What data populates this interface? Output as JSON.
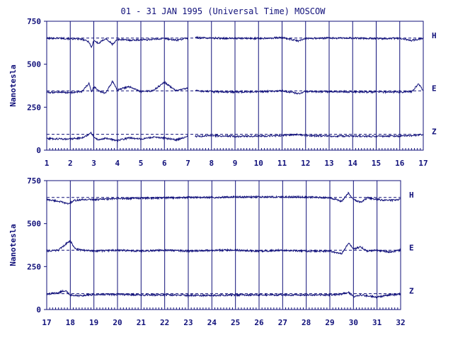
{
  "chart_data": {
    "type": "line",
    "title": "01 - 31 JAN 1995 (Universal Time) MOSCOW",
    "line_color": "#10107a",
    "grid": true,
    "panels": [
      {
        "ylabel": "Nanotesla",
        "ylim": [
          0,
          750
        ],
        "yticks": [
          0,
          250,
          500,
          750
        ],
        "xlim": [
          1,
          17
        ],
        "xticks": [
          1,
          2,
          3,
          4,
          5,
          6,
          7,
          8,
          9,
          10,
          11,
          12,
          13,
          14,
          15,
          16,
          17
        ],
        "gap": [
          7,
          7.3
        ],
        "series": [
          {
            "name": "H",
            "baseline": 652,
            "x": [
              1,
              1.5,
              2,
              2.5,
              2.8,
              2.9,
              3.0,
              3.2,
              3.5,
              3.8,
              4.0,
              4.5,
              5,
              5.5,
              6,
              6.5,
              7,
              7.3,
              8,
              9,
              10,
              11,
              11.7,
              12,
              13,
              14,
              15,
              16,
              16.5,
              17
            ],
            "y": [
              650,
              652,
              648,
              645,
              630,
              595,
              640,
              620,
              650,
              615,
              645,
              640,
              642,
              645,
              650,
              640,
              652,
              655,
              652,
              650,
              650,
              655,
              635,
              650,
              652,
              652,
              650,
              650,
              638,
              652
            ]
          },
          {
            "name": "E",
            "baseline": 345,
            "x": [
              1,
              1.5,
              2,
              2.5,
              2.8,
              2.9,
              3.0,
              3.2,
              3.5,
              3.8,
              4.0,
              4.5,
              5,
              5.5,
              6,
              6.5,
              7,
              7.3,
              8,
              9,
              10,
              11,
              11.7,
              12,
              13,
              14,
              15,
              16,
              16.5,
              16.8,
              17
            ],
            "y": [
              335,
              338,
              335,
              340,
              390,
              335,
              370,
              345,
              330,
              400,
              350,
              370,
              340,
              345,
              395,
              345,
              360,
              345,
              340,
              338,
              340,
              345,
              330,
              340,
              340,
              340,
              338,
              338,
              340,
              385,
              345
            ]
          },
          {
            "name": "Z",
            "baseline": 92,
            "x": [
              1,
              1.5,
              2,
              2.5,
              2.9,
              3.0,
              3.2,
              3.5,
              4.0,
              4.5,
              5,
              5.5,
              6,
              6.5,
              7,
              7.3,
              8,
              9,
              10,
              11,
              11.7,
              12,
              13,
              14,
              15,
              16,
              16.5,
              17
            ],
            "y": [
              68,
              66,
              65,
              72,
              100,
              75,
              60,
              70,
              55,
              72,
              65,
              75,
              70,
              60,
              80,
              80,
              85,
              80,
              82,
              85,
              92,
              85,
              82,
              82,
              80,
              82,
              85,
              90
            ]
          }
        ]
      },
      {
        "ylabel": "Nanotesla",
        "ylim": [
          0,
          750
        ],
        "yticks": [
          0,
          250,
          500,
          750
        ],
        "xlim": [
          17,
          32
        ],
        "xticks": [
          17,
          18,
          19,
          20,
          21,
          22,
          23,
          24,
          25,
          26,
          27,
          28,
          29,
          30,
          31,
          32
        ],
        "gap": null,
        "series": [
          {
            "name": "H",
            "baseline": 652,
            "x": [
              17,
              17.5,
              17.9,
              18.2,
              18.6,
              19,
              20,
              21,
              22,
              23,
              24,
              25,
              26,
              27,
              28,
              29,
              29.5,
              29.8,
              30.0,
              30.3,
              30.6,
              31,
              31.5,
              32
            ],
            "y": [
              640,
              630,
              615,
              635,
              640,
              640,
              645,
              648,
              650,
              652,
              652,
              655,
              655,
              655,
              655,
              650,
              630,
              680,
              640,
              625,
              650,
              640,
              635,
              640
            ]
          },
          {
            "name": "E",
            "baseline": 345,
            "x": [
              17,
              17.5,
              17.8,
              18.0,
              18.2,
              18.5,
              19,
              20,
              21,
              22,
              23,
              24,
              25,
              26,
              27,
              28,
              29,
              29.5,
              29.8,
              30.0,
              30.3,
              30.6,
              31,
              31.5,
              32
            ],
            "y": [
              340,
              345,
              380,
              400,
              355,
              345,
              340,
              345,
              340,
              345,
              340,
              345,
              345,
              340,
              345,
              340,
              340,
              325,
              390,
              350,
              365,
              340,
              345,
              335,
              345
            ]
          },
          {
            "name": "Z",
            "baseline": 92,
            "x": [
              17,
              17.5,
              17.8,
              18.0,
              18.4,
              19,
              20,
              21,
              22,
              23,
              24,
              25,
              26,
              27,
              28,
              29,
              29.5,
              29.8,
              30.0,
              30.3,
              30.6,
              31,
              31.5,
              32
            ],
            "y": [
              90,
              98,
              112,
              85,
              80,
              88,
              88,
              85,
              85,
              82,
              82,
              85,
              85,
              85,
              85,
              85,
              90,
              100,
              75,
              85,
              80,
              72,
              85,
              90
            ]
          }
        ]
      }
    ]
  }
}
